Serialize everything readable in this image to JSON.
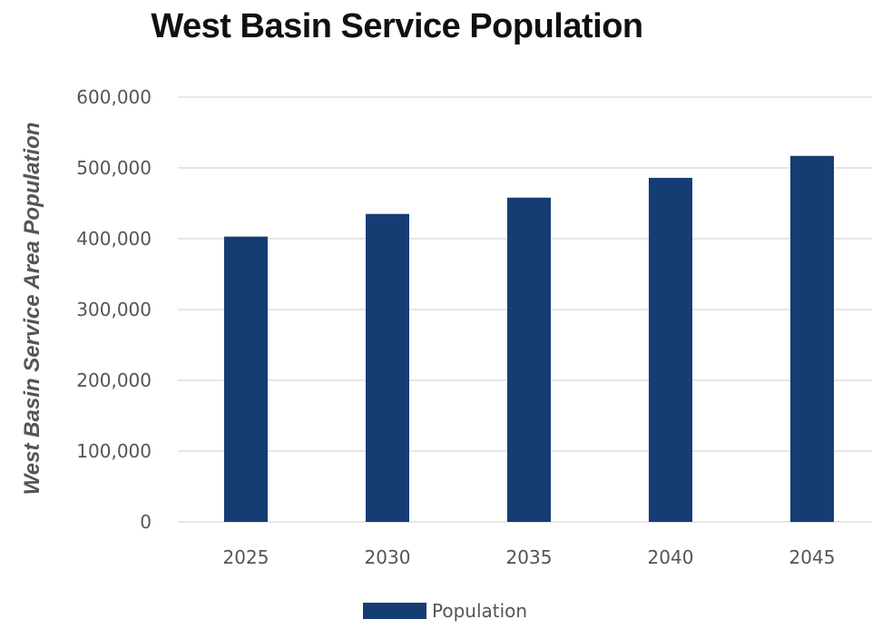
{
  "chart_data": {
    "type": "bar",
    "title": "West Basin Service Population",
    "xlabel": "",
    "ylabel": "West Basin Service Area Population",
    "categories": [
      "2025",
      "2030",
      "2035",
      "2040",
      "2045"
    ],
    "series": [
      {
        "name": "Population",
        "values": [
          403000,
          435000,
          458000,
          486000,
          517000
        ],
        "color": "#163d73"
      }
    ],
    "ylim": [
      0,
      600000
    ],
    "yticks": [
      0,
      100000,
      200000,
      300000,
      400000,
      500000,
      600000
    ],
    "ytick_labels": [
      "0",
      "100,000",
      "200,000",
      "300,000",
      "400,000",
      "500,000",
      "600,000"
    ],
    "grid": true,
    "legend": "bottom-center"
  }
}
